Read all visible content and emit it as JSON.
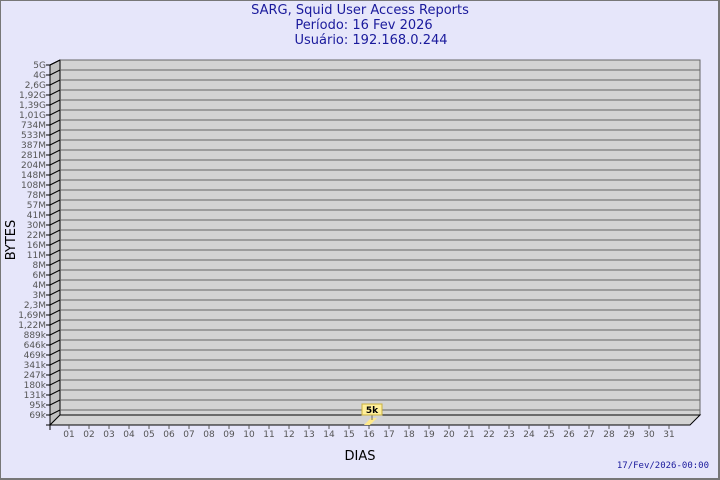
{
  "header": {
    "title": "SARG, Squid User Access Reports",
    "period": "Período: 16 Fev 2026",
    "user": "Usuário: 192.168.0.244"
  },
  "footer": {
    "timestamp": "17/Fev/2026-00:00"
  },
  "chart_data": {
    "type": "bar",
    "xlabel": "DIAS",
    "ylabel": "BYTES",
    "y_scale": "log",
    "grid": true,
    "categories": [
      "01",
      "02",
      "03",
      "04",
      "05",
      "06",
      "07",
      "08",
      "09",
      "10",
      "11",
      "12",
      "13",
      "14",
      "15",
      "16",
      "17",
      "18",
      "19",
      "20",
      "21",
      "22",
      "23",
      "24",
      "25",
      "26",
      "27",
      "28",
      "29",
      "30",
      "31"
    ],
    "y_tick_labels": [
      "5G",
      "4G",
      "2,6G",
      "1,92G",
      "1,39G",
      "1,01G",
      "734M",
      "533M",
      "387M",
      "281M",
      "204M",
      "148M",
      "108M",
      "78M",
      "57M",
      "41M",
      "30M",
      "22M",
      "16M",
      "11M",
      "8M",
      "6M",
      "4M",
      "3M",
      "2,3M",
      "1,69M",
      "1,22M",
      "889k",
      "646k",
      "469k",
      "341k",
      "247k",
      "180k",
      "131k",
      "95k",
      "69k"
    ],
    "series": [
      {
        "values": [
          null,
          null,
          null,
          null,
          null,
          null,
          null,
          null,
          null,
          null,
          null,
          null,
          null,
          null,
          null,
          5000,
          null,
          null,
          null,
          null,
          null,
          null,
          null,
          null,
          null,
          null,
          null,
          null,
          null,
          null,
          null
        ]
      }
    ],
    "data_labels": [
      {
        "category": "16",
        "label": "5k"
      }
    ],
    "colors": {
      "background": "#e6e6fa",
      "plot": "#d3d3d3",
      "wall": "#c0c0c0",
      "bar": "#ffe98a",
      "label_bg": "#ffef9a",
      "title": "#1a1a9c"
    }
  }
}
